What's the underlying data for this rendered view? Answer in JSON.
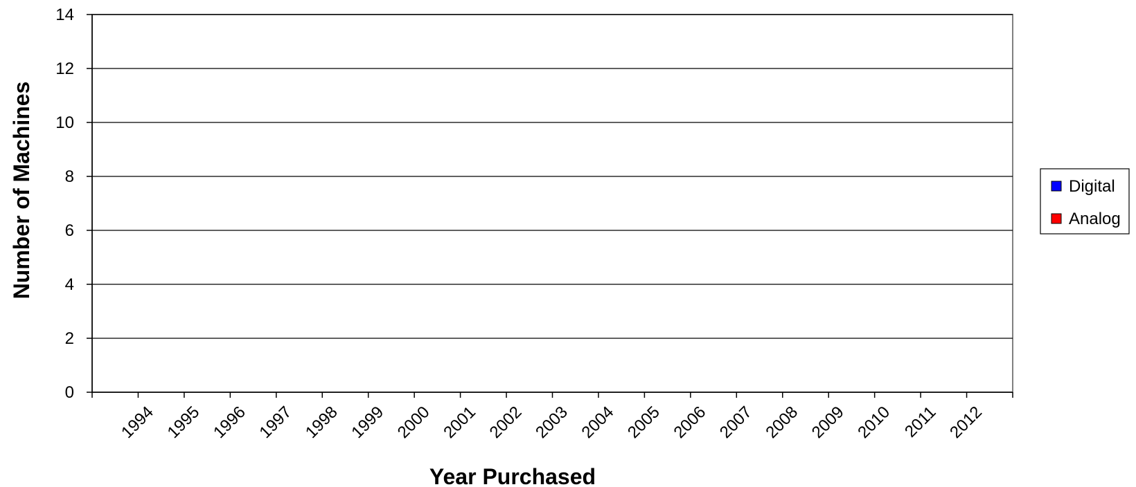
{
  "chart_data": {
    "type": "bar",
    "xlabel": "Year Purchased",
    "ylabel": "Number of Machines",
    "ylim": [
      0,
      14
    ],
    "yticks": [
      0,
      2,
      4,
      6,
      8,
      10,
      12,
      14
    ],
    "grid": true,
    "legend_position": "right",
    "categories": [
      "1994",
      "1995",
      "1996",
      "1997",
      "1998",
      "1999",
      "2000",
      "2001",
      "2002",
      "2003",
      "2004",
      "2005",
      "2006",
      "2007",
      "2008",
      "2009",
      "2010",
      "2011",
      "2012"
    ],
    "series": [
      {
        "name": "Digital",
        "color": "#0000ff",
        "values": [
          0,
          0,
          0,
          0,
          0,
          0,
          0,
          0,
          0,
          0,
          0,
          0,
          0,
          0,
          0,
          0,
          0,
          0,
          0
        ]
      },
      {
        "name": "Analog",
        "color": "#ff0000",
        "values": [
          0,
          0,
          0,
          0,
          0,
          0,
          0,
          0,
          0,
          0,
          0,
          0,
          0,
          0,
          0,
          0,
          0,
          0,
          0
        ]
      }
    ]
  }
}
